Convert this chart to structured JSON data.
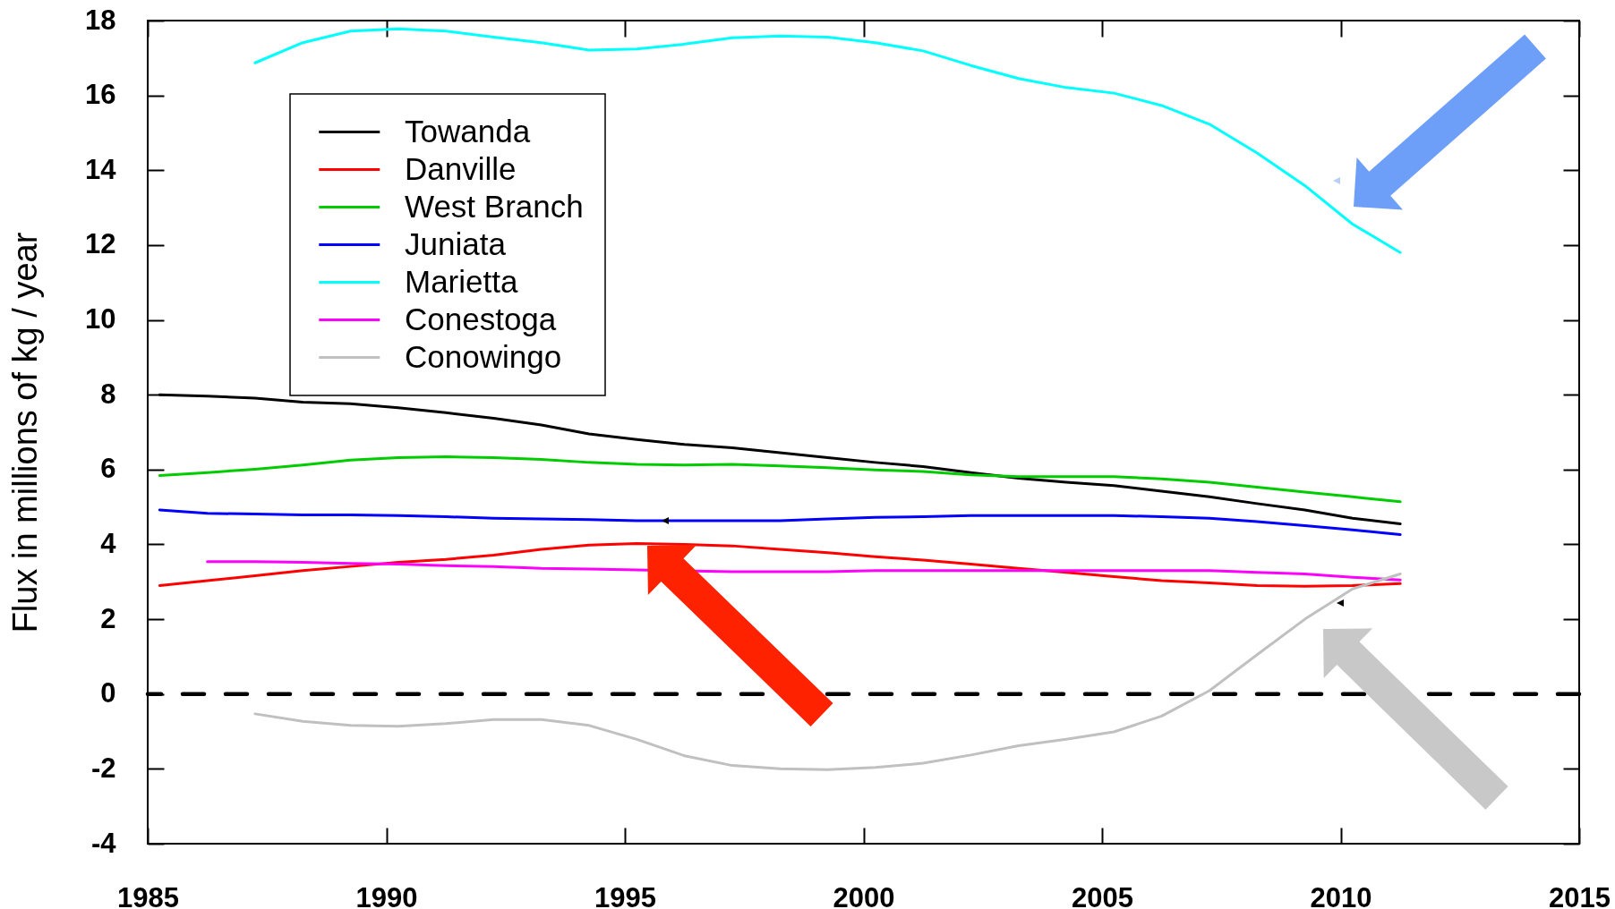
{
  "chart_data": {
    "type": "line",
    "ylabel": "Flux in millions of kg / year",
    "xlim": [
      1985,
      2015
    ],
    "xticks": [
      1985,
      1990,
      1995,
      2000,
      2005,
      2010,
      2015
    ],
    "ylim": [
      -4,
      18
    ],
    "yticks": [
      -4,
      -2,
      0,
      2,
      4,
      6,
      8,
      10,
      12,
      14,
      16,
      18
    ],
    "legend": "top left",
    "ref_lines": [
      {
        "axis": "y",
        "value": 0,
        "color": "#000000",
        "line_style": "dashed"
      }
    ],
    "series": [
      {
        "name": "Towanda",
        "color": "#000000",
        "x": [
          1985.25,
          1986.25,
          1987.25,
          1988.25,
          1989.25,
          1990.25,
          1991.25,
          1992.25,
          1993.25,
          1994.25,
          1995.25,
          1996.25,
          1997.25,
          1998.25,
          1999.25,
          2000.25,
          2001.25,
          2002.25,
          2003.25,
          2004.25,
          2005.25,
          2006.25,
          2007.25,
          2008.25,
          2009.25,
          2010.25,
          2011.25
        ],
        "values": [
          8.0,
          7.96,
          7.91,
          7.8,
          7.76,
          7.65,
          7.52,
          7.37,
          7.19,
          6.95,
          6.8,
          6.67,
          6.58,
          6.45,
          6.32,
          6.19,
          6.08,
          5.92,
          5.77,
          5.66,
          5.57,
          5.42,
          5.27,
          5.09,
          4.92,
          4.7,
          4.55
        ]
      },
      {
        "name": "Danville",
        "color": "#ff0000",
        "x": [
          1985.25,
          1986.25,
          1987.25,
          1988.25,
          1989.25,
          1990.25,
          1991.25,
          1992.25,
          1993.25,
          1994.25,
          1995.25,
          1996.25,
          1997.25,
          1998.25,
          1999.25,
          2000.25,
          2001.25,
          2002.25,
          2003.25,
          2004.25,
          2005.25,
          2006.25,
          2007.25,
          2008.25,
          2009.25,
          2010.25,
          2011.25
        ],
        "values": [
          2.9,
          3.03,
          3.16,
          3.3,
          3.41,
          3.52,
          3.6,
          3.71,
          3.87,
          3.98,
          4.02,
          4.0,
          3.96,
          3.87,
          3.78,
          3.67,
          3.58,
          3.47,
          3.36,
          3.25,
          3.14,
          3.03,
          2.97,
          2.9,
          2.88,
          2.9,
          2.95
        ]
      },
      {
        "name": "West Branch",
        "color": "#00cc00",
        "x": [
          1985.25,
          1986.25,
          1987.25,
          1988.25,
          1989.25,
          1990.25,
          1991.25,
          1992.25,
          1993.25,
          1994.25,
          1995.25,
          1996.25,
          1997.25,
          1998.25,
          1999.25,
          2000.25,
          2001.25,
          2002.25,
          2003.25,
          2004.25,
          2005.25,
          2006.25,
          2007.25,
          2008.25,
          2009.25,
          2010.25,
          2011.25
        ],
        "values": [
          5.84,
          5.92,
          6.01,
          6.12,
          6.25,
          6.32,
          6.34,
          6.32,
          6.27,
          6.19,
          6.14,
          6.12,
          6.14,
          6.1,
          6.05,
          5.99,
          5.95,
          5.86,
          5.81,
          5.81,
          5.81,
          5.75,
          5.66,
          5.53,
          5.4,
          5.27,
          5.14
        ]
      },
      {
        "name": "Juniata",
        "color": "#0000ff",
        "x": [
          1985.25,
          1986.25,
          1987.25,
          1988.25,
          1989.25,
          1990.25,
          1991.25,
          1992.25,
          1993.25,
          1994.25,
          1995.25,
          1996.25,
          1997.25,
          1998.25,
          1999.25,
          2000.25,
          2001.25,
          2002.25,
          2003.25,
          2004.25,
          2005.25,
          2006.25,
          2007.25,
          2008.25,
          2009.25,
          2010.25,
          2011.25
        ],
        "values": [
          4.92,
          4.83,
          4.81,
          4.79,
          4.79,
          4.77,
          4.74,
          4.7,
          4.68,
          4.66,
          4.63,
          4.63,
          4.63,
          4.63,
          4.68,
          4.72,
          4.74,
          4.77,
          4.77,
          4.77,
          4.77,
          4.74,
          4.7,
          4.61,
          4.5,
          4.39,
          4.26
        ]
      },
      {
        "name": "Marietta",
        "color": "#00ffff",
        "x": [
          1987.25,
          1988.25,
          1989.25,
          1990.25,
          1991.25,
          1992.25,
          1993.25,
          1994.25,
          1995.25,
          1996.25,
          1997.25,
          1998.25,
          1999.25,
          2000.25,
          2001.25,
          2002.25,
          2003.25,
          2004.25,
          2005.25,
          2006.25,
          2007.25,
          2008.25,
          2009.25,
          2010.25,
          2011.25
        ],
        "values": [
          16.87,
          17.41,
          17.72,
          17.78,
          17.72,
          17.56,
          17.41,
          17.21,
          17.24,
          17.37,
          17.54,
          17.59,
          17.56,
          17.41,
          17.19,
          16.8,
          16.45,
          16.21,
          16.06,
          15.73,
          15.23,
          14.46,
          13.59,
          12.56,
          11.8
        ]
      },
      {
        "name": "Conestoga",
        "color": "#ff00ff",
        "x": [
          1986.25,
          1987.25,
          1988.25,
          1989.25,
          1990.25,
          1991.25,
          1992.25,
          1993.25,
          1994.25,
          1995.25,
          1996.25,
          1997.25,
          1998.25,
          1999.25,
          2000.25,
          2001.25,
          2002.25,
          2003.25,
          2004.25,
          2005.25,
          2006.25,
          2007.25,
          2008.25,
          2009.25,
          2010.25,
          2011.25
        ],
        "values": [
          3.54,
          3.54,
          3.52,
          3.49,
          3.47,
          3.43,
          3.41,
          3.36,
          3.34,
          3.32,
          null,
          3.27,
          3.27,
          3.27,
          3.3,
          3.3,
          3.3,
          3.3,
          3.3,
          3.3,
          3.3,
          3.3,
          3.25,
          3.21,
          3.12,
          3.05
        ]
      },
      {
        "name": "Conowingo",
        "color": "#c0c0c0",
        "x": [
          1987.25,
          1988.25,
          1989.25,
          1990.25,
          1991.25,
          1992.25,
          1993.25,
          1994.25,
          1995.25,
          1996.25,
          1997.25,
          1998.25,
          1999.25,
          2000.25,
          2001.25,
          2002.25,
          2003.25,
          2004.25,
          2005.25,
          2006.25,
          2007.25,
          2008.25,
          2009.25,
          2010.25,
          2011.25
        ],
        "values": [
          -0.53,
          -0.73,
          -0.84,
          -0.86,
          -0.79,
          -0.68,
          -0.68,
          -0.84,
          -1.21,
          -1.65,
          -1.91,
          -2.0,
          -2.02,
          -1.96,
          -1.85,
          -1.63,
          -1.38,
          -1.21,
          -1.01,
          -0.59,
          0.09,
          1.05,
          2.0,
          2.81,
          3.21
        ]
      }
    ]
  }
}
